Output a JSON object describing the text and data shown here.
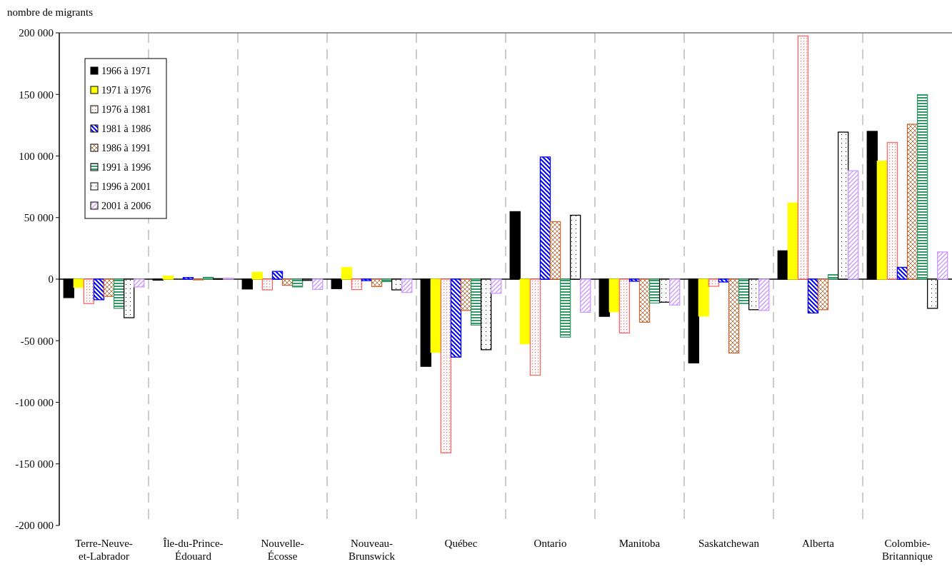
{
  "chart_data": {
    "type": "bar",
    "ylabel": "nombre de migrants",
    "categories": [
      "Terre-Neuve-et-Labrador",
      "Île-du-Prince-Édouard",
      "Nouvelle-Écosse",
      "Nouveau-Brunswick",
      "Québec",
      "Ontario",
      "Manitoba",
      "Saskatchewan",
      "Alberta",
      "Colombie-Britannique"
    ],
    "series": [
      {
        "name": "1966 à 1971",
        "color": "#000000",
        "values": [
          -15000,
          -800,
          -8000,
          -7700,
          -70800,
          54800,
          -30200,
          -68000,
          23000,
          120000
        ]
      },
      {
        "name": "1971 à 1976",
        "color": "#ffff00",
        "values": [
          -6700,
          2500,
          5600,
          9400,
          -59400,
          -52500,
          -26500,
          -30000,
          61900,
          95800
        ]
      },
      {
        "name": "1976 à 1981",
        "color": "#ff6666",
        "values": [
          -19800,
          0,
          -8700,
          -8500,
          -141000,
          -78000,
          -43700,
          -5800,
          197500,
          111000
        ]
      },
      {
        "name": "1981 à 1986",
        "color": "#0000ff",
        "values": [
          -16700,
          1300,
          6300,
          -1200,
          -63300,
          99200,
          -1700,
          -2300,
          -27500,
          9600
        ]
      },
      {
        "name": "1986 à 1991",
        "color": "#cc6633",
        "values": [
          -14000,
          -600,
          -5000,
          -6000,
          -25400,
          46700,
          -35000,
          -60000,
          -24800,
          125800
        ]
      },
      {
        "name": "1991 à 1996",
        "color": "#339966",
        "values": [
          -23700,
          1500,
          -6300,
          -2000,
          -37300,
          -47100,
          -19400,
          -19800,
          3700,
          149800
        ]
      },
      {
        "name": "1996 à 2001",
        "color": "#000000",
        "values": [
          -31300,
          400,
          -1000,
          -8700,
          -57300,
          51900,
          -18700,
          -24800,
          119400,
          -23700
        ]
      },
      {
        "name": "2001 à 2006",
        "color": "#cc99ff",
        "values": [
          -6300,
          800,
          -8300,
          -10800,
          -11500,
          -26900,
          -21000,
          -25400,
          88000,
          22100
        ]
      }
    ],
    "ylim": [
      -200000,
      200000
    ],
    "yticks": [
      {
        "value": -200000,
        "label": "-200 000"
      },
      {
        "value": -150000,
        "label": "-150 000"
      },
      {
        "value": -100000,
        "label": "-100 000"
      },
      {
        "value": -50000,
        "label": "-50 000"
      },
      0,
      {
        "value": 50000,
        "label": "50 000"
      },
      {
        "value": 100000,
        "label": "100 000"
      },
      {
        "value": 150000,
        "label": "150 000"
      },
      {
        "value": 200000,
        "label": "200 000"
      }
    ],
    "legend": "top left"
  }
}
